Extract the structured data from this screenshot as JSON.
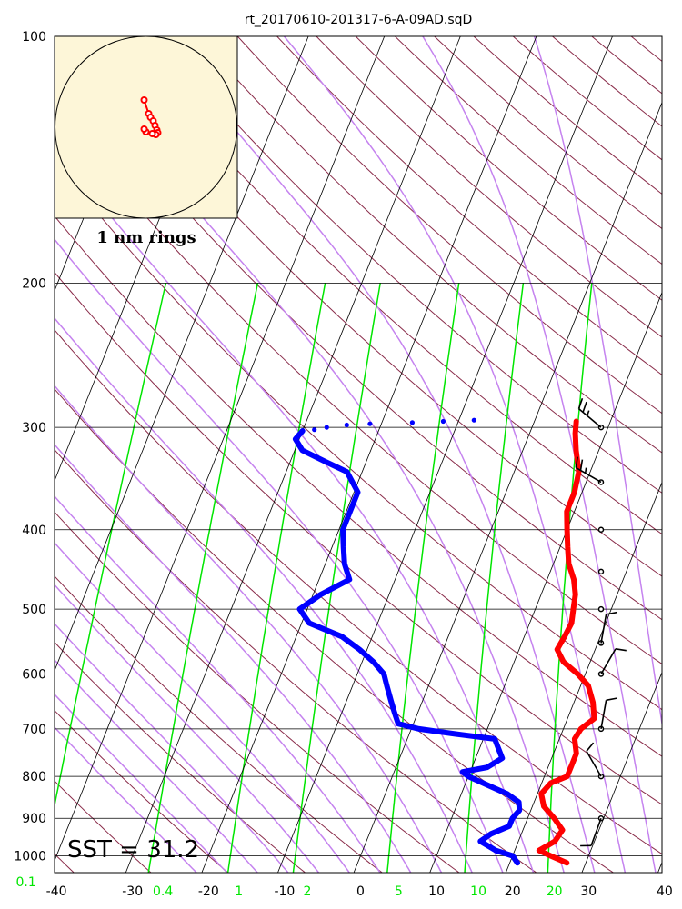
{
  "chart_data": {
    "type": "line",
    "title": "rt_20170610-201317-6-A-09AD.sqD",
    "x_axis": {
      "ticks": [
        -40,
        -30,
        -20,
        -10,
        0,
        10,
        20,
        30,
        40
      ],
      "range": [
        -40,
        40
      ]
    },
    "y_axis": {
      "scale": "log",
      "range": [
        1050,
        100
      ],
      "ticks": [
        100,
        200,
        300,
        400,
        500,
        600,
        700,
        800,
        900,
        1000
      ]
    },
    "mixing_ratio_labels": [
      {
        "label": "0.1",
        "t": -44.0
      },
      {
        "label": "0.4",
        "t": -26.0
      },
      {
        "label": "1",
        "t": -16.0
      },
      {
        "label": "2",
        "t": -7.0
      },
      {
        "label": "5",
        "t": 5.0
      },
      {
        "label": "10",
        "t": 15.5
      },
      {
        "label": "20",
        "t": 25.5
      }
    ],
    "annotation": "SST = 31.2",
    "hodograph_label": "1 nm rings",
    "series": [
      {
        "color": "#ff0000",
        "points": [
          [
            1020,
            27.5
          ],
          [
            1000,
            25.0
          ],
          [
            985,
            23.2
          ],
          [
            960,
            24.8
          ],
          [
            930,
            25.2
          ],
          [
            900,
            23.5
          ],
          [
            870,
            21.5
          ],
          [
            840,
            20.5
          ],
          [
            815,
            21.2
          ],
          [
            800,
            23.0
          ],
          [
            780,
            23.0
          ],
          [
            750,
            23.0
          ],
          [
            720,
            22.0
          ],
          [
            700,
            22.3
          ],
          [
            680,
            23.5
          ],
          [
            650,
            22.5
          ],
          [
            620,
            21.0
          ],
          [
            600,
            19.0
          ],
          [
            580,
            16.5
          ],
          [
            560,
            15.0
          ],
          [
            540,
            15.3
          ],
          [
            520,
            15.5
          ],
          [
            500,
            15.0
          ],
          [
            480,
            14.5
          ],
          [
            460,
            13.5
          ],
          [
            440,
            12.0
          ],
          [
            420,
            11.0
          ],
          [
            400,
            10.0
          ],
          [
            380,
            9.0
          ],
          [
            360,
            9.0
          ],
          [
            340,
            8.5
          ],
          [
            320,
            7.0
          ],
          [
            305,
            6.0
          ],
          [
            295,
            5.5
          ]
        ]
      },
      {
        "color": "#0000ff",
        "points": [
          [
            1020,
            21.0
          ],
          [
            1000,
            20.0
          ],
          [
            985,
            17.5
          ],
          [
            960,
            15.0
          ],
          [
            940,
            16.0
          ],
          [
            920,
            18.0
          ],
          [
            900,
            18.0
          ],
          [
            880,
            18.5
          ],
          [
            860,
            18.0
          ],
          [
            840,
            16.0
          ],
          [
            820,
            13.0
          ],
          [
            800,
            10.0
          ],
          [
            790,
            9.0
          ],
          [
            780,
            12.0
          ],
          [
            760,
            13.5
          ],
          [
            740,
            12.5
          ],
          [
            720,
            11.5
          ],
          [
            710,
            6.0
          ],
          [
            700,
            1.0
          ],
          [
            690,
            -2.0
          ],
          [
            670,
            -3.0
          ],
          [
            650,
            -4.0
          ],
          [
            620,
            -5.5
          ],
          [
            600,
            -6.5
          ],
          [
            580,
            -8.5
          ],
          [
            560,
            -11.0
          ],
          [
            540,
            -14.0
          ],
          [
            520,
            -19.0
          ],
          [
            500,
            -21.0
          ],
          [
            480,
            -19.0
          ],
          [
            460,
            -16.0
          ],
          [
            440,
            -17.5
          ],
          [
            420,
            -18.5
          ],
          [
            400,
            -19.5
          ],
          [
            380,
            -19.5
          ],
          [
            360,
            -19.5
          ],
          [
            340,
            -22.0
          ],
          [
            330,
            -25.5
          ],
          [
            320,
            -29.0
          ],
          [
            310,
            -30.5
          ],
          [
            303,
            -30.0
          ]
        ]
      },
      {
        "color": "#0000ff",
        "style": "dotted",
        "points": [
          [
            302,
            -28.5
          ],
          [
            300,
            -27.0
          ],
          [
            298,
            -24.5
          ],
          [
            297,
            -21.5
          ],
          [
            296,
            -16.0
          ],
          [
            295,
            -12.0
          ],
          [
            294,
            -8.0
          ]
        ]
      }
    ],
    "wind_barbs": [
      {
        "p": 300,
        "dir": 310,
        "spd": 15
      },
      {
        "p": 350,
        "dir": 300,
        "spd": 15
      },
      {
        "p": 400,
        "dir": 0,
        "spd": 0
      },
      {
        "p": 450,
        "dir": 0,
        "spd": 0
      },
      {
        "p": 500,
        "dir": 0,
        "spd": 0
      },
      {
        "p": 550,
        "dir": 10,
        "spd": 10
      },
      {
        "p": 600,
        "dir": 30,
        "spd": 10
      },
      {
        "p": 700,
        "dir": 10,
        "spd": 10
      },
      {
        "p": 800,
        "dir": 330,
        "spd": 10
      },
      {
        "p": 900,
        "dir": 200,
        "spd": 10
      }
    ],
    "hodograph": {
      "background": "#fdf6d8",
      "trace_color": "#ff0000",
      "points": [
        [
          -2,
          30
        ],
        [
          3,
          15
        ],
        [
          5,
          11
        ],
        [
          8,
          7
        ],
        [
          10,
          2
        ],
        [
          12,
          -3
        ],
        [
          13,
          -6
        ],
        [
          11,
          -8
        ],
        [
          7,
          -7
        ],
        [
          0,
          -5
        ],
        [
          -2,
          -2
        ]
      ]
    },
    "colors": {
      "isobar": "#000000",
      "isotherm": "#000000",
      "dry_adiabat": "#8a2c4a",
      "moist_adiabat": "#c583ef",
      "mixing_ratio": "#00e600"
    }
  }
}
